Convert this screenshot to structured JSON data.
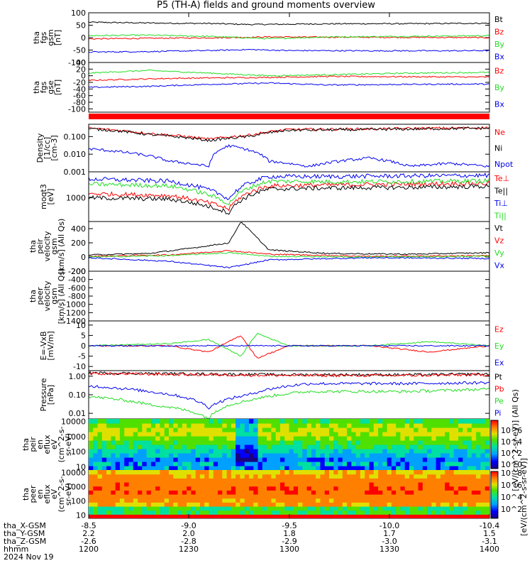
{
  "title": "P5 (TH-A) fields and ground moments overview",
  "colors": {
    "black": "#000000",
    "red": "#ff0000",
    "green": "#22dd22",
    "blue": "#0000ee",
    "bar": "#ff0000"
  },
  "chart_data": [
    {
      "type": "line",
      "panel": "fgs_gsm",
      "ylabel_lines": [
        "tha",
        "fgs",
        "gsm",
        "[nT]"
      ],
      "ylim": [
        -100,
        100
      ],
      "yticks": [
        "100",
        "50",
        "0",
        "-50",
        "-100"
      ],
      "series": [
        {
          "name": "Bt",
          "color": "black",
          "points": [
            [
              0,
              62
            ],
            [
              0.1,
              60
            ],
            [
              0.2,
              58
            ],
            [
              0.3,
              57
            ],
            [
              0.4,
              53
            ],
            [
              0.5,
              54
            ],
            [
              0.55,
              55
            ],
            [
              0.65,
              56
            ],
            [
              0.8,
              56
            ],
            [
              0.9,
              57
            ],
            [
              1.0,
              58
            ]
          ]
        },
        {
          "name": "Bz",
          "color": "red",
          "points": [
            [
              0,
              -5
            ],
            [
              0.2,
              -2
            ],
            [
              0.35,
              0
            ],
            [
              0.45,
              3
            ],
            [
              0.6,
              2
            ],
            [
              0.8,
              1
            ],
            [
              1.0,
              0
            ]
          ]
        },
        {
          "name": "By",
          "color": "green",
          "points": [
            [
              0,
              8
            ],
            [
              0.15,
              10
            ],
            [
              0.3,
              5
            ],
            [
              0.45,
              -4
            ],
            [
              0.6,
              3
            ],
            [
              0.8,
              5
            ],
            [
              1.0,
              8
            ]
          ]
        },
        {
          "name": "Bx",
          "color": "blue",
          "points": [
            [
              0,
              -58
            ],
            [
              0.15,
              -56
            ],
            [
              0.3,
              -52
            ],
            [
              0.4,
              -48
            ],
            [
              0.5,
              -52
            ],
            [
              0.7,
              -53
            ],
            [
              0.9,
              -53
            ],
            [
              1.0,
              -52
            ]
          ]
        }
      ]
    },
    {
      "type": "line",
      "panel": "fgs_gse",
      "ylabel_lines": [
        "tha",
        "fgs",
        "gse",
        "[nT]"
      ],
      "ylim": [
        -110,
        40
      ],
      "yticks": [
        "40",
        "20",
        "0",
        "-20",
        "-40",
        "-60",
        "-80",
        "-100"
      ],
      "series": [
        {
          "name": "Bz",
          "color": "red",
          "points": [
            [
              0,
              -14
            ],
            [
              0.2,
              -8
            ],
            [
              0.35,
              -6
            ],
            [
              0.45,
              -5
            ],
            [
              0.6,
              -2
            ],
            [
              0.8,
              -3
            ],
            [
              1.0,
              -4
            ]
          ]
        },
        {
          "name": "By",
          "color": "green",
          "points": [
            [
              0,
              8
            ],
            [
              0.15,
              16
            ],
            [
              0.3,
              8
            ],
            [
              0.45,
              0
            ],
            [
              0.6,
              3
            ],
            [
              0.8,
              8
            ],
            [
              1.0,
              10
            ]
          ]
        },
        {
          "name": "Bx",
          "color": "blue",
          "points": [
            [
              0,
              -35
            ],
            [
              0.15,
              -32
            ],
            [
              0.3,
              -26
            ],
            [
              0.45,
              -22
            ],
            [
              0.6,
              -28
            ],
            [
              0.8,
              -26
            ],
            [
              1.0,
              -25
            ]
          ]
        }
      ]
    },
    {
      "type": "line",
      "panel": "density",
      "ylabel_lines": [
        "Density",
        "[1/cc]",
        "[cm-3]"
      ],
      "ylog": true,
      "ylim": [
        0.001,
        0.5
      ],
      "yticks": [
        "0.100",
        "0.010",
        "0.001"
      ],
      "series": [
        {
          "name": "Ne",
          "color": "red",
          "points": [
            [
              0,
              0.3
            ],
            [
              0.15,
              0.15
            ],
            [
              0.3,
              0.07
            ],
            [
              0.4,
              0.12
            ],
            [
              0.5,
              0.25
            ],
            [
              0.7,
              0.27
            ],
            [
              1.0,
              0.32
            ]
          ]
        },
        {
          "name": "Ni",
          "color": "black",
          "points": [
            [
              0,
              0.28
            ],
            [
              0.15,
              0.13
            ],
            [
              0.3,
              0.06
            ],
            [
              0.4,
              0.1
            ],
            [
              0.5,
              0.23
            ],
            [
              0.7,
              0.25
            ],
            [
              1.0,
              0.3
            ]
          ]
        },
        {
          "name": "Npot",
          "color": "blue",
          "points": [
            [
              0,
              0.02
            ],
            [
              0.1,
              0.012
            ],
            [
              0.2,
              0.004
            ],
            [
              0.3,
              0.002
            ],
            [
              0.35,
              0.03
            ],
            [
              0.45,
              0.004
            ],
            [
              0.55,
              0.002
            ],
            [
              0.7,
              0.006
            ],
            [
              0.8,
              0.002
            ],
            [
              0.9,
              0.003
            ],
            [
              1.0,
              0.002
            ]
          ]
        }
      ]
    },
    {
      "type": "line",
      "panel": "temperature",
      "ylabel_lines": [
        "moqt3",
        "[eV]"
      ],
      "ylog": true,
      "ylim": [
        150,
        8000
      ],
      "yticks": [
        "1000"
      ],
      "series": [
        {
          "name": "Te⊥",
          "color": "red",
          "points": [
            [
              0,
              1400
            ],
            [
              0.2,
              1200
            ],
            [
              0.35,
              400
            ],
            [
              0.45,
              2600
            ],
            [
              0.6,
              2800
            ],
            [
              0.8,
              3000
            ],
            [
              1.0,
              3200
            ]
          ]
        },
        {
          "name": "Te||",
          "color": "black",
          "points": [
            [
              0,
              1000
            ],
            [
              0.2,
              900
            ],
            [
              0.35,
              300
            ],
            [
              0.45,
              2000
            ],
            [
              0.6,
              2200
            ],
            [
              0.8,
              2300
            ],
            [
              1.0,
              2500
            ]
          ]
        },
        {
          "name": "Ti⊥",
          "color": "blue",
          "points": [
            [
              0,
              4500
            ],
            [
              0.2,
              3800
            ],
            [
              0.35,
              900
            ],
            [
              0.45,
              5500
            ],
            [
              0.6,
              5500
            ],
            [
              0.8,
              5800
            ],
            [
              1.0,
              6000
            ]
          ]
        },
        {
          "name": "Ti||",
          "color": "green",
          "points": [
            [
              0,
              3000
            ],
            [
              0.2,
              2600
            ],
            [
              0.35,
              600
            ],
            [
              0.45,
              3800
            ],
            [
              0.6,
              3600
            ],
            [
              0.8,
              3700
            ],
            [
              1.0,
              3900
            ]
          ]
        }
      ]
    },
    {
      "type": "line",
      "panel": "peir_velocity",
      "ylabel_lines": [
        "tha",
        "peir",
        "velocity",
        "gsm",
        "[km/s] (All Qs)"
      ],
      "ylim": [
        -200,
        500
      ],
      "yticks": [
        "400",
        "200",
        "0",
        "-200"
      ],
      "series": [
        {
          "name": "Vt",
          "color": "black",
          "points": [
            [
              0,
              30
            ],
            [
              0.15,
              50
            ],
            [
              0.25,
              120
            ],
            [
              0.35,
              200
            ],
            [
              0.38,
              500
            ],
            [
              0.45,
              100
            ],
            [
              0.6,
              50
            ],
            [
              0.8,
              40
            ],
            [
              1.0,
              60
            ]
          ]
        },
        {
          "name": "Vz",
          "color": "red",
          "points": [
            [
              0,
              10
            ],
            [
              0.2,
              30
            ],
            [
              0.35,
              90
            ],
            [
              0.45,
              40
            ],
            [
              0.7,
              10
            ],
            [
              1.0,
              20
            ]
          ]
        },
        {
          "name": "Vy",
          "color": "green",
          "points": [
            [
              0,
              0
            ],
            [
              0.2,
              20
            ],
            [
              0.35,
              60
            ],
            [
              0.45,
              10
            ],
            [
              0.7,
              0
            ],
            [
              1.0,
              10
            ]
          ]
        },
        {
          "name": "Vx",
          "color": "blue",
          "points": [
            [
              0,
              -10
            ],
            [
              0.2,
              -60
            ],
            [
              0.35,
              -150
            ],
            [
              0.45,
              -40
            ],
            [
              0.7,
              -10
            ],
            [
              1.0,
              -20
            ]
          ]
        }
      ]
    },
    {
      "type": "line",
      "panel": "peer_velocity",
      "ylabel_lines": [
        "tha",
        "peer",
        "velocity",
        "gsm",
        "[km/s] (All Qs)"
      ],
      "ylim": [
        -1400,
        -200
      ],
      "yticks": [
        "-200",
        "-400",
        "-600",
        "-800",
        "-1000",
        "-1200",
        "-1400"
      ],
      "series": []
    },
    {
      "type": "line",
      "panel": "efield",
      "ylabel_lines": [
        "E=-VxB",
        "[mV/m]"
      ],
      "ylim": [
        -12,
        12
      ],
      "yticks": [
        "10",
        "5",
        "0",
        "-5",
        "-10"
      ],
      "series": [
        {
          "name": "Ez",
          "color": "red",
          "points": [
            [
              0,
              0
            ],
            [
              0.2,
              0
            ],
            [
              0.3,
              -3
            ],
            [
              0.38,
              5
            ],
            [
              0.42,
              -6
            ],
            [
              0.5,
              0
            ],
            [
              0.7,
              0
            ],
            [
              0.85,
              -3
            ],
            [
              1.0,
              0
            ]
          ]
        },
        {
          "name": "Ey",
          "color": "green",
          "points": [
            [
              0,
              0
            ],
            [
              0.2,
              1
            ],
            [
              0.3,
              3
            ],
            [
              0.38,
              -5
            ],
            [
              0.42,
              6
            ],
            [
              0.5,
              0
            ],
            [
              0.7,
              0
            ],
            [
              0.85,
              2
            ],
            [
              1.0,
              0
            ]
          ]
        },
        {
          "name": "Ex",
          "color": "blue",
          "points": [
            [
              0,
              0
            ],
            [
              1.0,
              0
            ]
          ]
        }
      ]
    },
    {
      "type": "line",
      "panel": "pressure",
      "ylabel_lines": [
        "Pressure",
        "[nPa]"
      ],
      "ylog": true,
      "ylim": [
        0.005,
        2.0
      ],
      "yticks": [
        "1.00",
        "0.10",
        "0.01"
      ],
      "series": [
        {
          "name": "Pt",
          "color": "black",
          "points": [
            [
              0,
              1.5
            ],
            [
              0.3,
              1.3
            ],
            [
              0.5,
              1.2
            ],
            [
              0.8,
              1.2
            ],
            [
              1.0,
              1.3
            ]
          ]
        },
        {
          "name": "Pb",
          "color": "red",
          "points": [
            [
              0,
              1.4
            ],
            [
              0.3,
              1.2
            ],
            [
              0.5,
              1.1
            ],
            [
              0.8,
              1.1
            ],
            [
              1.0,
              1.2
            ]
          ]
        },
        {
          "name": "Pe",
          "color": "green",
          "points": [
            [
              0,
              0.08
            ],
            [
              0.15,
              0.03
            ],
            [
              0.3,
              0.005
            ],
            [
              0.4,
              0.05
            ],
            [
              0.55,
              0.15
            ],
            [
              0.8,
              0.15
            ],
            [
              1.0,
              0.2
            ]
          ]
        },
        {
          "name": "Pi",
          "color": "blue",
          "points": [
            [
              0,
              0.3
            ],
            [
              0.15,
              0.15
            ],
            [
              0.3,
              0.02
            ],
            [
              0.4,
              0.1
            ],
            [
              0.55,
              0.4
            ],
            [
              0.8,
              0.4
            ],
            [
              1.0,
              0.45
            ]
          ]
        }
      ]
    },
    {
      "type": "heatmap",
      "panel": "peir_en_eflux",
      "ylabel_lines": [
        "tha",
        "peir",
        "en",
        "eflux",
        "eV",
        "(cm^2-s-",
        "sr-eV)"
      ],
      "ylog": true,
      "ylim": [
        6,
        15000
      ],
      "yticks": [
        "10000",
        "1000",
        "100",
        "10"
      ],
      "zrange": [
        1,
        1000000
      ]
    },
    {
      "type": "heatmap",
      "panel": "peer_en_eflux",
      "ylabel_lines": [
        "tha",
        "peer",
        "en",
        "eflux",
        "eV",
        "(cm^2-s-",
        "sr-eV)"
      ],
      "ylog": true,
      "ylim": [
        6,
        15000
      ],
      "yticks": [
        "10000",
        "1000",
        "100",
        "10"
      ],
      "zrange": [
        1,
        100000000
      ]
    }
  ],
  "colorbar": {
    "label": "[eV/(cm^2-s-sr-eV)]",
    "upper_label": "[eV/(cm^2-sr-eV)] (All Qs)",
    "upper_ticks": [
      "10^6",
      "10^4",
      "10^2",
      "10^0"
    ],
    "lower_ticks": [
      "10^8",
      "10^6",
      "10^4",
      "10^2"
    ]
  },
  "x_axis": {
    "tick_values": [
      "-8.5",
      "-9.0",
      "-9.5",
      "-10.0",
      "-10.4"
    ],
    "rows": [
      {
        "label": "tha_X-GSM",
        "values": [
          "-8.5",
          "-9.0",
          "-9.5",
          "-10.0",
          "-10.4"
        ]
      },
      {
        "label": "tha_Y-GSM",
        "values": [
          "2.2",
          "2.0",
          "1.8",
          "1.7",
          "1.5"
        ]
      },
      {
        "label": "tha_Z-GSM",
        "values": [
          "-2.6",
          "-2.8",
          "-2.9",
          "-3.0",
          "-3.1"
        ]
      },
      {
        "label": "hhmm",
        "values": [
          "1200",
          "1230",
          "1300",
          "1330",
          "1400"
        ]
      }
    ],
    "date": "2024 Nov 19"
  }
}
